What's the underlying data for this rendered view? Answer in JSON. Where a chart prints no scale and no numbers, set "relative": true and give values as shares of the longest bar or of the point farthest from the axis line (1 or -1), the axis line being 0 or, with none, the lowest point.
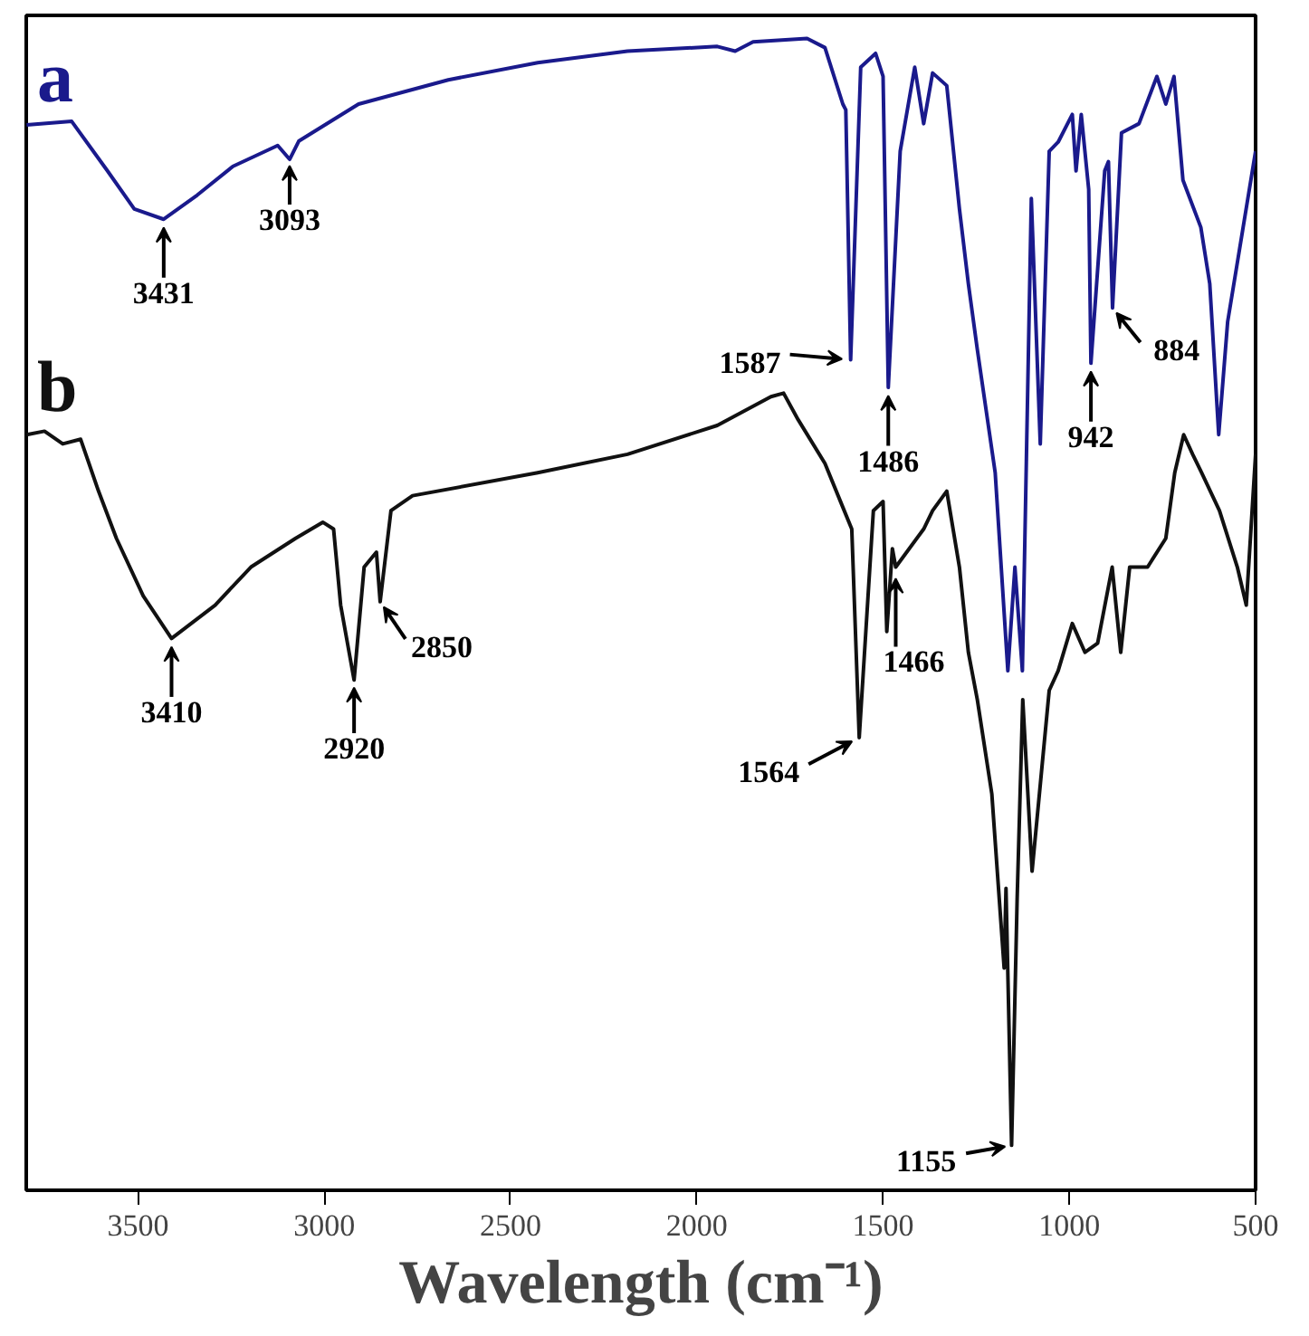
{
  "chart_data": {
    "type": "line",
    "relative": true,
    "xlabel": "Wavelength (cm⁻¹)",
    "xlim": [
      3800,
      500
    ],
    "xticks": [
      3500,
      3000,
      2500,
      2000,
      1500,
      1000,
      500
    ],
    "grid": false,
    "marker": "none",
    "line_style": "solid",
    "series": [
      {
        "name": "a",
        "color": "#1a1a8c",
        "x": [
          3799,
          3678,
          3582,
          3510,
          3431,
          3341,
          3245,
          3125,
          3093,
          3068,
          2908,
          2667,
          2427,
          2186,
          1945,
          1897,
          1849,
          1704,
          1656,
          1608,
          1600,
          1587,
          1560,
          1520,
          1500,
          1486,
          1454,
          1415,
          1391,
          1367,
          1329,
          1295,
          1271,
          1247,
          1199,
          1165,
          1146,
          1126,
          1102,
          1078,
          1054,
          1030,
          992,
          982,
          968,
          948,
          942,
          905,
          895,
          884,
          860,
          813,
          765,
          741,
          719,
          695,
          647,
          623,
          599,
          575,
          500
        ],
        "values": [
          0.925,
          0.928,
          0.885,
          0.852,
          0.843,
          0.864,
          0.889,
          0.907,
          0.895,
          0.911,
          0.943,
          0.964,
          0.979,
          0.989,
          0.993,
          0.989,
          0.997,
          1.0,
          0.992,
          0.943,
          0.938,
          0.721,
          0.975,
          0.987,
          0.967,
          0.697,
          0.902,
          0.975,
          0.926,
          0.97,
          0.959,
          0.852,
          0.787,
          0.73,
          0.623,
          0.451,
          0.541,
          0.451,
          0.861,
          0.648,
          0.902,
          0.91,
          0.934,
          0.885,
          0.934,
          0.869,
          0.718,
          0.885,
          0.893,
          0.766,
          0.918,
          0.926,
          0.967,
          0.943,
          0.967,
          0.877,
          0.836,
          0.787,
          0.656,
          0.754,
          0.902
        ]
      },
      {
        "name": "b",
        "color": "#111111",
        "x": [
          3799,
          3751,
          3702,
          3654,
          3606,
          3558,
          3486,
          3410,
          3293,
          3197,
          3077,
          3004,
          2975,
          2956,
          2920,
          2893,
          2860,
          2850,
          2821,
          2763,
          2427,
          2186,
          1945,
          1801,
          1767,
          1728,
          1656,
          1608,
          1584,
          1564,
          1526,
          1500,
          1490,
          1475,
          1466,
          1391,
          1367,
          1329,
          1295,
          1271,
          1247,
          1208,
          1175,
          1170,
          1155,
          1140,
          1125,
          1100,
          1054,
          1030,
          992,
          958,
          924,
          885,
          862,
          838,
          790,
          741,
          717,
          693,
          669,
          645,
          597,
          549,
          525,
          500
        ],
        "values": [
          0.656,
          0.659,
          0.648,
          0.652,
          0.607,
          0.566,
          0.516,
          0.479,
          0.508,
          0.541,
          0.566,
          0.58,
          0.574,
          0.508,
          0.443,
          0.541,
          0.554,
          0.511,
          0.59,
          0.603,
          0.623,
          0.639,
          0.664,
          0.689,
          0.692,
          0.669,
          0.631,
          0.593,
          0.574,
          0.393,
          0.59,
          0.598,
          0.485,
          0.557,
          0.541,
          0.574,
          0.59,
          0.607,
          0.541,
          0.467,
          0.426,
          0.344,
          0.193,
          0.262,
          0.039,
          0.254,
          0.426,
          0.277,
          0.434,
          0.451,
          0.492,
          0.467,
          0.475,
          0.541,
          0.467,
          0.541,
          0.541,
          0.566,
          0.623,
          0.656,
          0.639,
          0.623,
          0.59,
          0.541,
          0.508,
          0.639
        ]
      }
    ],
    "annotations": [
      {
        "text": "3431",
        "x": 3431,
        "y": 0.843
      },
      {
        "text": "3093",
        "x": 3093,
        "y": 0.895
      },
      {
        "text": "1587",
        "x": 1587,
        "y": 0.721
      },
      {
        "text": "1486",
        "x": 1486,
        "y": 0.697
      },
      {
        "text": "942",
        "x": 942,
        "y": 0.718
      },
      {
        "text": "884",
        "x": 884,
        "y": 0.766
      },
      {
        "text": "3410",
        "x": 3410,
        "y": 0.479
      },
      {
        "text": "2920",
        "x": 2920,
        "y": 0.443
      },
      {
        "text": "2850",
        "x": 2850,
        "y": 0.511
      },
      {
        "text": "1564",
        "x": 1564,
        "y": 0.393
      },
      {
        "text": "1466",
        "x": 1466,
        "y": 0.541
      },
      {
        "text": "1155",
        "x": 1155,
        "y": 0.039
      }
    ]
  }
}
